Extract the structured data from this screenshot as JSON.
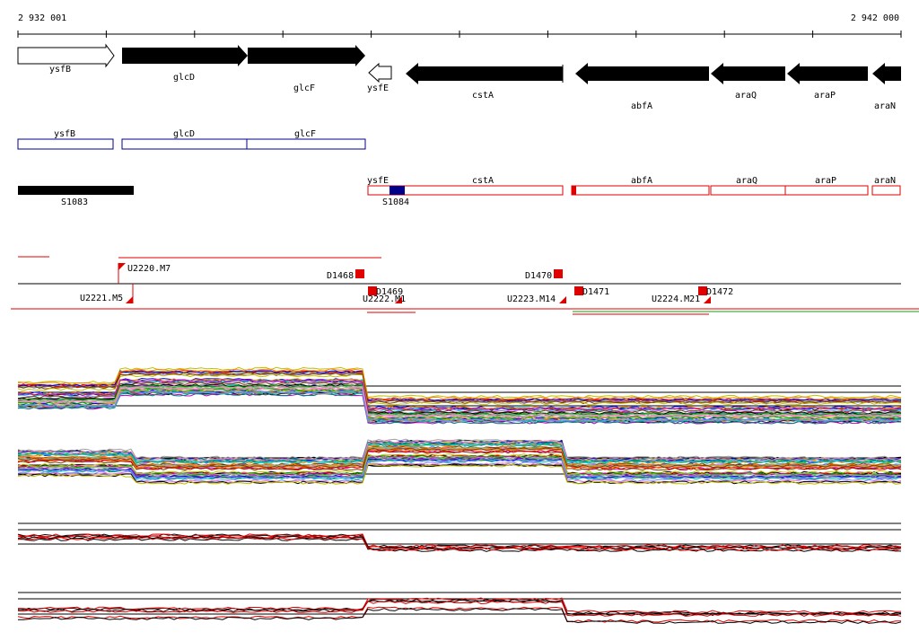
{
  "ruler": {
    "start": "2 932 001",
    "end": "2 942 000"
  },
  "genes": [
    {
      "label": "ysfB"
    },
    {
      "label": "glcD"
    },
    {
      "label": "glcF"
    },
    {
      "label": "ysfE"
    },
    {
      "label": "cstA"
    },
    {
      "label": "abfA"
    },
    {
      "label": "araQ"
    },
    {
      "label": "araP"
    },
    {
      "label": "araN"
    }
  ],
  "cds": [
    {
      "label": "ysfB"
    },
    {
      "label": "glcD"
    },
    {
      "label": "glcF"
    }
  ],
  "features": [
    {
      "label": "S1083"
    },
    {
      "label": "ysfE"
    },
    {
      "label": "S1084"
    },
    {
      "label": "cstA"
    },
    {
      "label": "abfA"
    },
    {
      "label": "araQ"
    },
    {
      "label": "araP"
    },
    {
      "label": "araN"
    }
  ],
  "regions": [
    {
      "label": "U2220.M7"
    },
    {
      "label": "D1468"
    },
    {
      "label": "D1470"
    },
    {
      "label": "U2221.M5"
    },
    {
      "label": "D1469"
    },
    {
      "label": "U2222.M1"
    },
    {
      "label": "U2223.M14"
    },
    {
      "label": "D1471"
    },
    {
      "label": "U2224.M21"
    },
    {
      "label": "D1472"
    }
  ]
}
